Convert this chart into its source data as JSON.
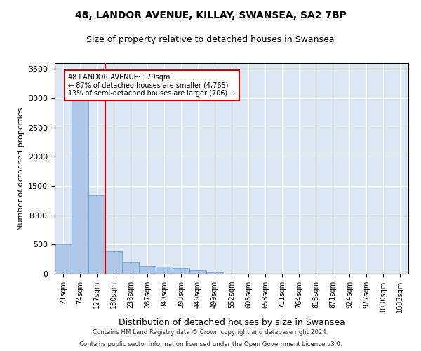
{
  "title": "48, LANDOR AVENUE, KILLAY, SWANSEA, SA2 7BP",
  "subtitle": "Size of property relative to detached houses in Swansea",
  "xlabel": "Distribution of detached houses by size in Swansea",
  "ylabel": "Number of detached properties",
  "categories": [
    "21sqm",
    "74sqm",
    "127sqm",
    "180sqm",
    "233sqm",
    "287sqm",
    "340sqm",
    "393sqm",
    "446sqm",
    "499sqm",
    "552sqm",
    "605sqm",
    "658sqm",
    "711sqm",
    "764sqm",
    "818sqm",
    "871sqm",
    "924sqm",
    "977sqm",
    "1030sqm",
    "1083sqm"
  ],
  "values": [
    500,
    3020,
    1350,
    390,
    200,
    130,
    120,
    95,
    60,
    20,
    0,
    0,
    0,
    0,
    0,
    0,
    0,
    0,
    0,
    0,
    0
  ],
  "bar_color": "#aec6e8",
  "bar_edgecolor": "#5b9bd5",
  "vline_x": 2.5,
  "vline_color": "#cc0000",
  "annotation_line1": "48 LANDOR AVENUE: 179sqm",
  "annotation_line2": "← 87% of detached houses are smaller (4,765)",
  "annotation_line3": "13% of semi-detached houses are larger (706) →",
  "annotation_box_edgecolor": "#cc0000",
  "ylim": [
    0,
    3600
  ],
  "yticks": [
    0,
    500,
    1000,
    1500,
    2000,
    2500,
    3000,
    3500
  ],
  "bg_color": "#dce9f5",
  "title_fontsize": 10,
  "subtitle_fontsize": 9,
  "footnote1": "Contains HM Land Registry data © Crown copyright and database right 2024.",
  "footnote2": "Contains public sector information licensed under the Open Government Licence v3.0."
}
